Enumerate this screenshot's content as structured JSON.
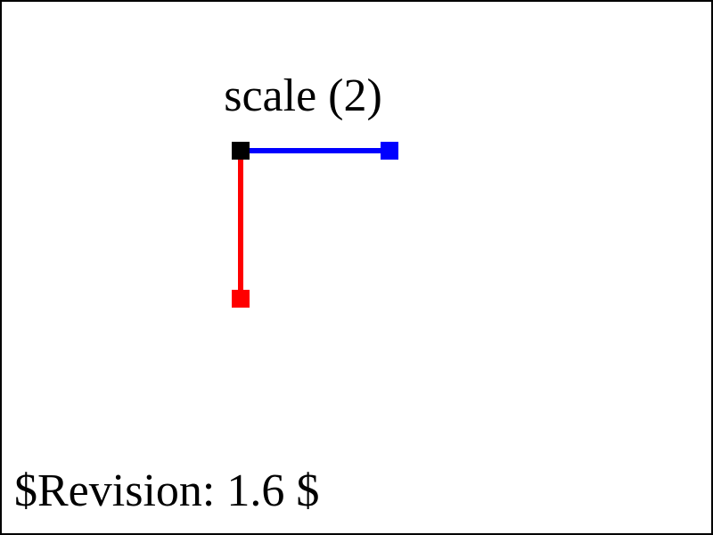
{
  "title": "scale (2)",
  "footer": "$Revision: 1.6 $",
  "colors": {
    "frame": "#000000",
    "origin": "#000000",
    "x_axis": "#0000ff",
    "y_axis": "#ff0000",
    "background": "#ffffff"
  }
}
